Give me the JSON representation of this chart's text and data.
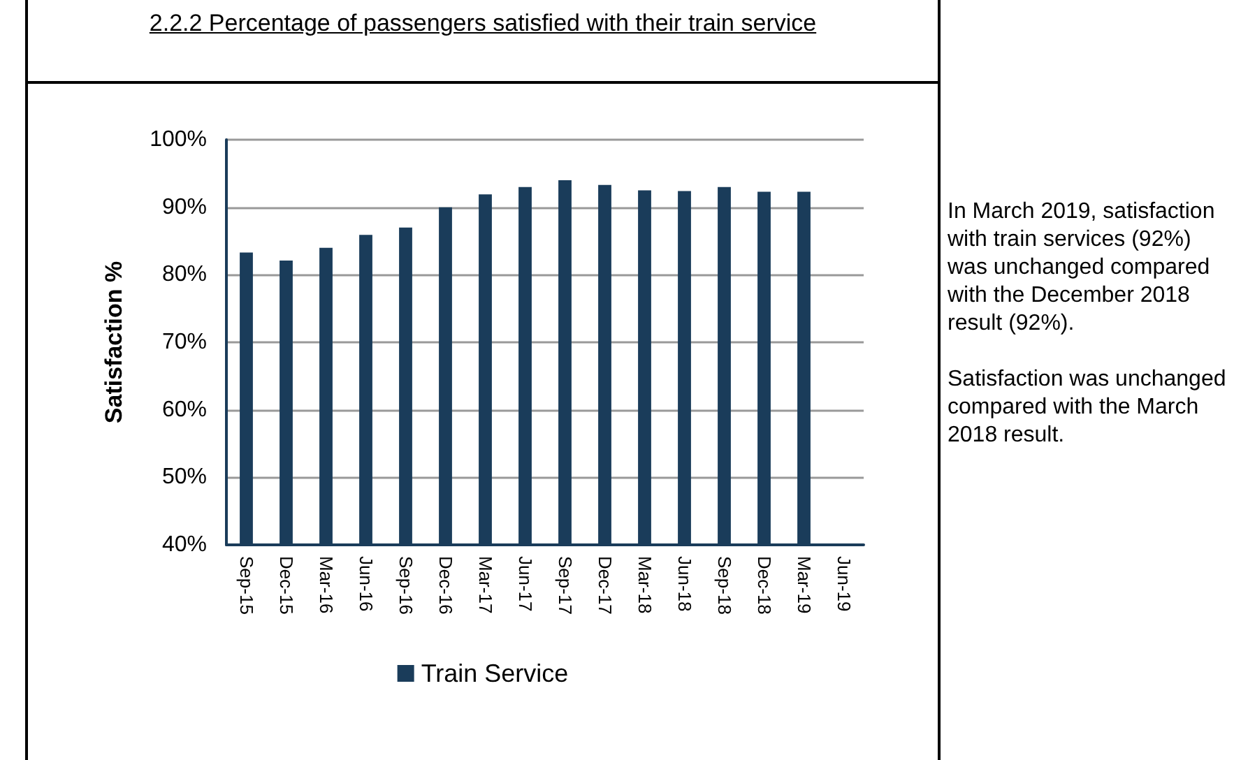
{
  "chart_data": {
    "type": "bar",
    "title": "2.2.2 Percentage of passengers satisfied with their train service",
    "ylabel": "Satisfaction %",
    "categories": [
      "Sep-15",
      "Dec-15",
      "Mar-16",
      "Jun-16",
      "Sep-16",
      "Dec-16",
      "Mar-17",
      "Jun-17",
      "Sep-17",
      "Dec-17",
      "Mar-18",
      "Jun-18",
      "Sep-18",
      "Dec-18",
      "Mar-19",
      "Jun-19"
    ],
    "series": [
      {
        "name": "Train Service",
        "color": "#1a3c5a",
        "values": [
          83.3,
          82.1,
          84.0,
          85.9,
          87.0,
          90.0,
          91.9,
          93.0,
          94.0,
          93.3,
          92.5,
          92.4,
          93.0,
          92.3,
          92.3,
          null
        ]
      }
    ],
    "ylim": [
      40,
      100
    ],
    "yticks": [
      {
        "value": 40,
        "label": "40%"
      },
      {
        "value": 50,
        "label": "50%"
      },
      {
        "value": 60,
        "label": "60%"
      },
      {
        "value": 70,
        "label": "70%"
      },
      {
        "value": 80,
        "label": "80%"
      },
      {
        "value": 90,
        "label": "90%"
      },
      {
        "value": 100,
        "label": "100%"
      }
    ],
    "grid": "y",
    "legend": "bottom",
    "annotations": [
      "In March 2019, satisfaction with train services (92%) was unchanged compared with the December 2018 result (92%).",
      "Satisfaction was unchanged compared with the March 2018 result."
    ]
  }
}
